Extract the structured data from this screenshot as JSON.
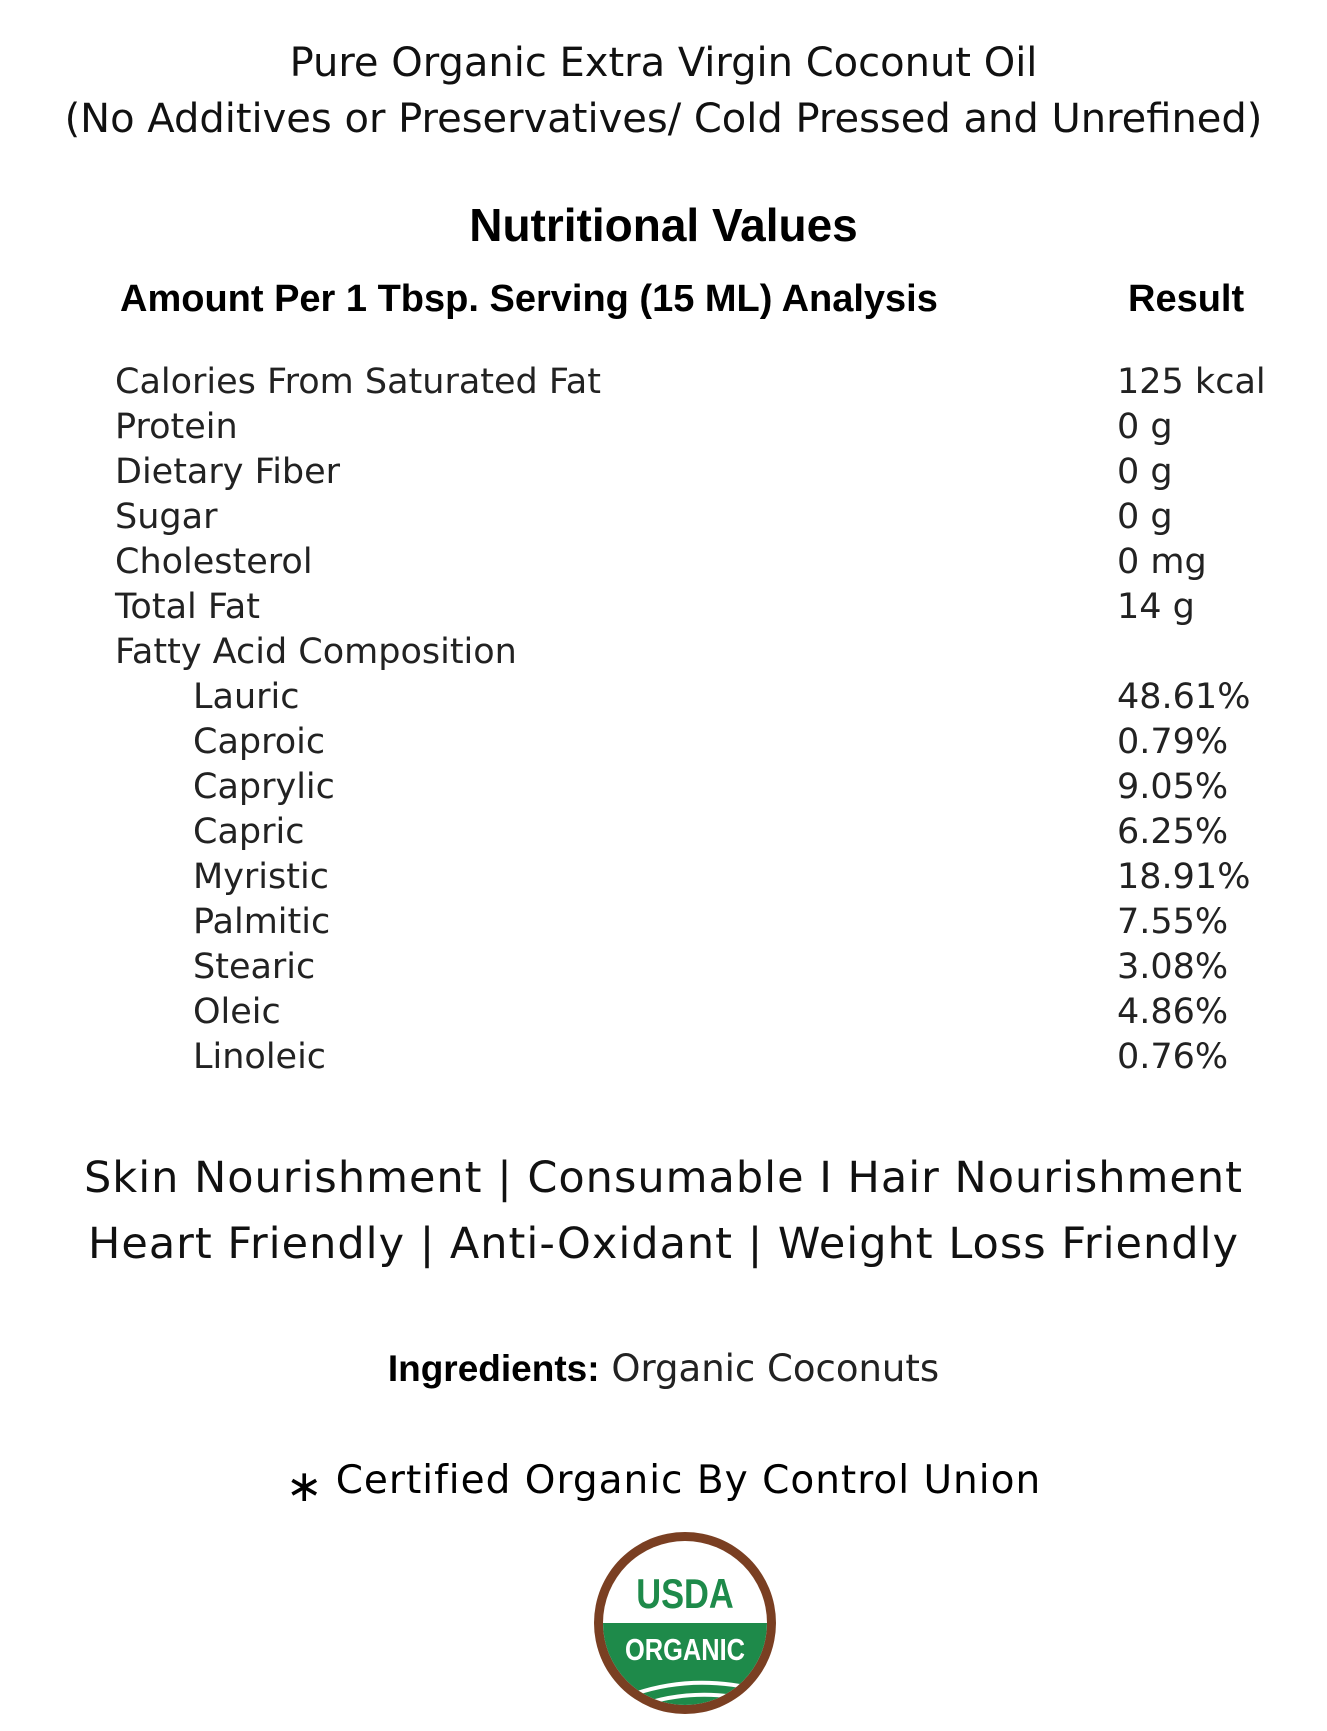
{
  "header": {
    "title_line1": "Pure Organic Extra Virgin Coconut Oil",
    "title_line2": "(No Additives or Preservatives/ Cold Pressed and Unrefined)"
  },
  "nutrition": {
    "heading": "Nutritional Values",
    "column_amount": "Amount Per 1 Tbsp. Serving (15 ML) Analysis",
    "column_result": "Result",
    "rows": [
      {
        "label": "Calories From Saturated Fat",
        "value": "125 kcal"
      },
      {
        "label": "Protein",
        "value": "0 g"
      },
      {
        "label": "Dietary Fiber",
        "value": "0 g"
      },
      {
        "label": "Sugar",
        "value": "0 g"
      },
      {
        "label": "Cholesterol",
        "value": "0 mg"
      },
      {
        "label": "Total Fat",
        "value": "14 g"
      },
      {
        "label": "Fatty Acid Composition",
        "value": ""
      },
      {
        "label": "Lauric",
        "value": "48.61%"
      },
      {
        "label": "Caproic",
        "value": "0.79%"
      },
      {
        "label": "Caprylic",
        "value": "9.05%"
      },
      {
        "label": "Capric",
        "value": "6.25%"
      },
      {
        "label": "Myristic",
        "value": "18.91%"
      },
      {
        "label": "Palmitic",
        "value": "7.55%"
      },
      {
        "label": "Stearic",
        "value": "3.08%"
      },
      {
        "label": "Oleic",
        "value": "4.86%"
      },
      {
        "label": "Linoleic",
        "value": "0.76%"
      }
    ]
  },
  "benefits": {
    "line1": "Skin Nourishment | Consumable I Hair Nourishment",
    "line2": "Heart Friendly | Anti-Oxidant | Weight Loss Friendly"
  },
  "ingredients": {
    "label": "Ingredients:",
    "value": "Organic Coconuts"
  },
  "certification": {
    "asterisk": "∗",
    "text": "Certified Organic By Control Union"
  },
  "seal": {
    "top_text": "USDA",
    "bottom_text": "ORGANIC",
    "colors": {
      "ring": "#7a3f22",
      "green": "#1e8a4a",
      "white": "#ffffff"
    }
  }
}
